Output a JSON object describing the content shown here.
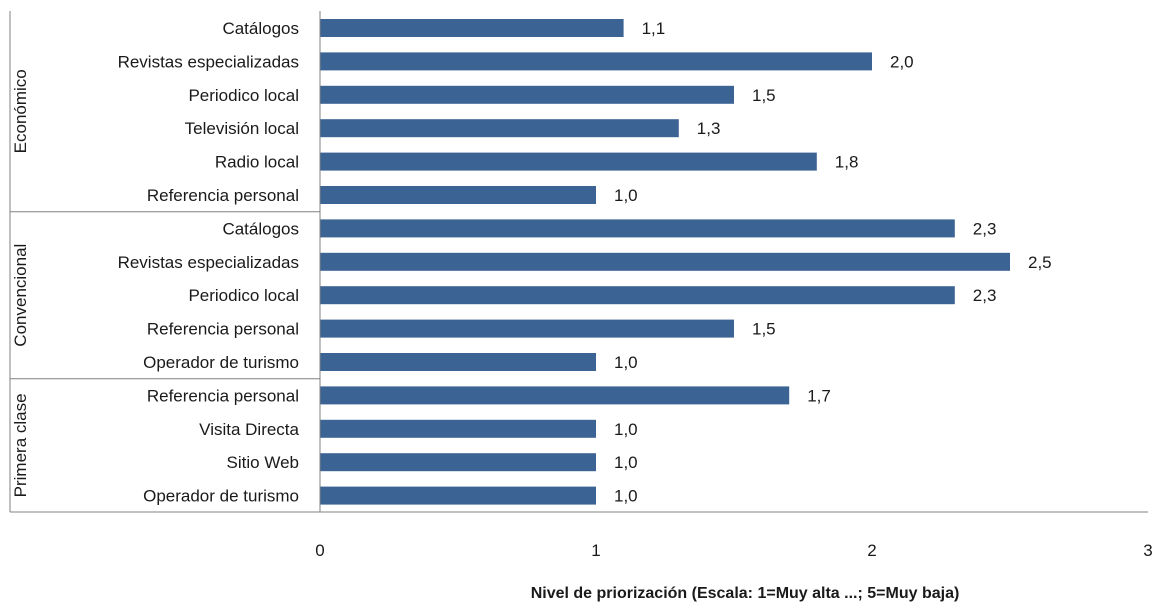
{
  "chart_data": {
    "type": "bar",
    "orientation": "horizontal",
    "title": "",
    "xlabel": "Nivel de priorización (Escala: 1=Muy alta ...; 5=Muy baja)",
    "ylabel": "",
    "xlim": [
      0,
      3
    ],
    "x_ticks": [
      "0",
      "1",
      "2",
      "3"
    ],
    "grid": false,
    "legend": "none",
    "bar_color": "#3b6394",
    "groups": [
      {
        "name": "Económico",
        "categories": [
          "Catálogos",
          "Revistas especializadas",
          "Periodico local",
          "Televisión local",
          "Radio local",
          "Referencia personal"
        ],
        "values": [
          1.1,
          2.0,
          1.5,
          1.3,
          1.8,
          1.0
        ],
        "value_labels": [
          "1,1",
          "2,0",
          "1,5",
          "1,3",
          "1,8",
          "1,0"
        ]
      },
      {
        "name": "Convencional",
        "categories": [
          "Catálogos",
          "Revistas especializadas",
          "Periodico local",
          "Referencia personal",
          "Operador de turismo"
        ],
        "values": [
          2.3,
          2.5,
          2.3,
          1.5,
          1.0
        ],
        "value_labels": [
          "2,3",
          "2,5",
          "2,3",
          "1,5",
          "1,0"
        ]
      },
      {
        "name": "Primera clase",
        "categories": [
          "Referencia personal",
          "Visita Directa",
          "Sitio Web",
          "Operador de turismo"
        ],
        "values": [
          1.7,
          1.0,
          1.0,
          1.0
        ],
        "value_labels": [
          "1,7",
          "1,0",
          "1,0",
          "1,0"
        ]
      }
    ]
  }
}
